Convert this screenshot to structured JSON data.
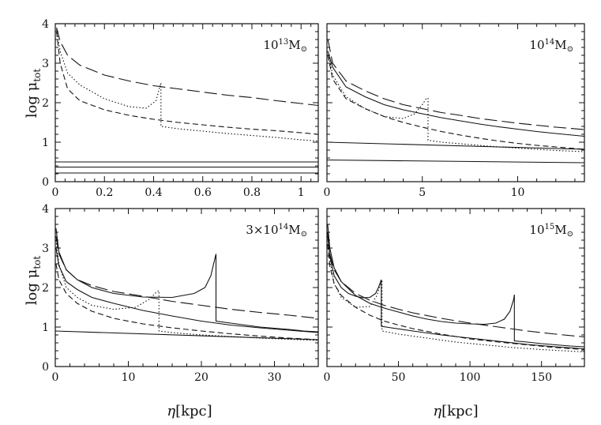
{
  "figure": {
    "ylabel_main": "log μ",
    "ylabel_sub": "tot",
    "xlabel_main": "η",
    "xlabel_unit": "[kpc]"
  },
  "chart_data": [
    {
      "type": "line",
      "label_base": "10",
      "label_exp": "13",
      "label_unit": "M",
      "label_sym": "⊙",
      "xlim": [
        0,
        1.07
      ],
      "ylim": [
        0,
        4
      ],
      "xticks": [
        0,
        0.2,
        0.4,
        0.6,
        0.8,
        1
      ],
      "xtick_labels": [
        "0",
        "0.2",
        "0.4",
        "0.6",
        "0.8",
        "1"
      ],
      "yticks": [
        0,
        1,
        2,
        3,
        4
      ],
      "ytick_labels": [
        "0",
        "1",
        "2",
        "3",
        "4"
      ],
      "series": [
        {
          "name": "long-dash",
          "style": "longdash",
          "x": [
            0.005,
            0.02,
            0.05,
            0.1,
            0.2,
            0.3,
            0.4,
            0.5,
            0.6,
            0.7,
            0.8,
            0.9,
            1.0,
            1.07
          ],
          "y": [
            3.9,
            3.55,
            3.2,
            2.95,
            2.7,
            2.55,
            2.43,
            2.35,
            2.27,
            2.19,
            2.13,
            2.05,
            1.98,
            1.93
          ]
        },
        {
          "name": "short-dash",
          "style": "dash",
          "x": [
            0.005,
            0.02,
            0.05,
            0.1,
            0.2,
            0.3,
            0.4,
            0.5,
            0.6,
            0.7,
            0.8,
            0.9,
            1.0,
            1.07
          ],
          "y": [
            3.8,
            3.0,
            2.35,
            2.05,
            1.82,
            1.68,
            1.58,
            1.5,
            1.44,
            1.38,
            1.33,
            1.29,
            1.24,
            1.2
          ]
        },
        {
          "name": "dotted",
          "style": "dot",
          "x": [
            0.005,
            0.02,
            0.05,
            0.1,
            0.2,
            0.3,
            0.37,
            0.41,
            0.425,
            0.43,
            0.43,
            0.5,
            0.6,
            0.7,
            0.8,
            0.9,
            1.0,
            1.07
          ],
          "y": [
            3.85,
            3.3,
            2.75,
            2.45,
            2.1,
            1.9,
            1.86,
            2.05,
            2.4,
            2.5,
            1.4,
            1.34,
            1.28,
            1.22,
            1.17,
            1.12,
            1.06,
            1.03
          ]
        },
        {
          "name": "solid-0.50",
          "style": "solid",
          "x": [
            0,
            1.07
          ],
          "y": [
            0.5,
            0.5
          ]
        },
        {
          "name": "solid-0.37",
          "style": "solid",
          "x": [
            0,
            1.07
          ],
          "y": [
            0.37,
            0.37
          ]
        },
        {
          "name": "solid-0.22",
          "style": "solid",
          "x": [
            0,
            1.07
          ],
          "y": [
            0.22,
            0.22
          ]
        }
      ]
    },
    {
      "type": "line",
      "label_base": "10",
      "label_exp": "14",
      "label_unit": "M",
      "label_sym": "⊙",
      "xlim": [
        0,
        13.5
      ],
      "ylim": [
        0,
        4
      ],
      "xticks": [
        0,
        5,
        10
      ],
      "xtick_labels": [
        "0",
        "5",
        "10"
      ],
      "yticks": [
        0,
        1,
        2,
        3,
        4
      ],
      "ytick_labels": [],
      "series": [
        {
          "name": "long-dash",
          "style": "longdash",
          "x": [
            0.05,
            0.3,
            1,
            2,
            3,
            4,
            5,
            6,
            7,
            8,
            9,
            10,
            11,
            12,
            13.5
          ],
          "y": [
            3.6,
            3.0,
            2.55,
            2.3,
            2.1,
            1.95,
            1.85,
            1.75,
            1.68,
            1.6,
            1.54,
            1.48,
            1.43,
            1.38,
            1.32
          ]
        },
        {
          "name": "solid-top",
          "style": "solid",
          "x": [
            0.05,
            0.3,
            1,
            2,
            3,
            4,
            5,
            6,
            7,
            8,
            9,
            10,
            11,
            12,
            13.5
          ],
          "y": [
            3.3,
            2.9,
            2.4,
            2.15,
            1.95,
            1.82,
            1.72,
            1.62,
            1.54,
            1.46,
            1.39,
            1.33,
            1.27,
            1.22,
            1.15
          ]
        },
        {
          "name": "short-dash",
          "style": "dash",
          "x": [
            0.05,
            0.3,
            1,
            2,
            3,
            4,
            5,
            6,
            7,
            8,
            9,
            10,
            11,
            12,
            13.5
          ],
          "y": [
            3.2,
            2.6,
            2.1,
            1.85,
            1.65,
            1.5,
            1.38,
            1.27,
            1.18,
            1.1,
            1.03,
            0.97,
            0.92,
            0.88,
            0.82
          ]
        },
        {
          "name": "dotted",
          "style": "dot",
          "x": [
            0.05,
            0.3,
            1,
            2,
            3,
            4,
            4.6,
            5.0,
            5.2,
            5.3,
            5.3,
            6,
            7,
            8,
            9,
            10,
            11,
            12,
            13.5
          ],
          "y": [
            3.3,
            2.7,
            2.15,
            1.85,
            1.65,
            1.6,
            1.72,
            1.95,
            2.1,
            2.12,
            1.05,
            1.0,
            0.96,
            0.92,
            0.88,
            0.85,
            0.82,
            0.79,
            0.76
          ]
        },
        {
          "name": "solid-flat-upper",
          "style": "solid",
          "x": [
            0,
            13.5
          ],
          "y": [
            1.0,
            0.82
          ]
        },
        {
          "name": "solid-flat-lower",
          "style": "solid",
          "x": [
            0,
            13.5
          ],
          "y": [
            0.55,
            0.48
          ]
        }
      ]
    },
    {
      "type": "line",
      "label_base": "3×10",
      "label_exp": "14",
      "label_unit": "M",
      "label_sym": "⊙",
      "xlim": [
        0,
        36
      ],
      "ylim": [
        0,
        4
      ],
      "xticks": [
        0,
        10,
        20,
        30
      ],
      "xtick_labels": [
        "0",
        "10",
        "20",
        "30"
      ],
      "yticks": [
        0,
        1,
        2,
        3,
        4
      ],
      "ytick_labels": [
        "0",
        "1",
        "2",
        "3",
        "4"
      ],
      "series": [
        {
          "name": "solid-spike",
          "style": "solid",
          "x": [
            0.1,
            0.5,
            1.5,
            3,
            5,
            8,
            12,
            16,
            19,
            20.5,
            21.3,
            21.8,
            22.0,
            22.0,
            24,
            26,
            28,
            30,
            32,
            34,
            36
          ],
          "y": [
            3.5,
            2.9,
            2.45,
            2.2,
            2.0,
            1.85,
            1.76,
            1.75,
            1.85,
            2.0,
            2.3,
            2.7,
            2.85,
            1.15,
            1.1,
            1.05,
            1.0,
            0.97,
            0.94,
            0.9,
            0.88
          ]
        },
        {
          "name": "long-dash",
          "style": "longdash",
          "x": [
            0.1,
            0.5,
            1.5,
            3,
            5,
            8,
            12,
            16,
            20,
            24,
            28,
            32,
            36
          ],
          "y": [
            3.3,
            2.85,
            2.45,
            2.2,
            2.05,
            1.9,
            1.78,
            1.65,
            1.55,
            1.45,
            1.37,
            1.3,
            1.22
          ]
        },
        {
          "name": "solid-mid",
          "style": "solid",
          "x": [
            0.1,
            0.5,
            1.5,
            3,
            5,
            8,
            12,
            16,
            20,
            24,
            28,
            32,
            36
          ],
          "y": [
            3.0,
            2.55,
            2.15,
            1.95,
            1.75,
            1.6,
            1.42,
            1.28,
            1.15,
            1.05,
            0.98,
            0.92,
            0.86
          ]
        },
        {
          "name": "dotted",
          "style": "dot",
          "x": [
            0.1,
            0.5,
            1.5,
            3,
            5,
            8,
            11,
            13,
            13.8,
            14.2,
            14.2,
            16,
            20,
            24,
            28,
            32,
            36
          ],
          "y": [
            3.2,
            2.6,
            2.0,
            1.75,
            1.55,
            1.45,
            1.5,
            1.72,
            1.88,
            1.92,
            0.9,
            0.86,
            0.8,
            0.76,
            0.72,
            0.69,
            0.66
          ]
        },
        {
          "name": "short-dash",
          "style": "dash",
          "x": [
            0.1,
            0.5,
            1.5,
            3,
            5,
            8,
            12,
            16,
            20,
            24,
            28,
            32,
            36
          ],
          "y": [
            2.6,
            2.2,
            1.85,
            1.6,
            1.4,
            1.22,
            1.08,
            0.98,
            0.9,
            0.83,
            0.77,
            0.72,
            0.68
          ]
        },
        {
          "name": "solid-flat",
          "style": "solid",
          "x": [
            0,
            36
          ],
          "y": [
            0.9,
            0.68
          ]
        }
      ]
    },
    {
      "type": "line",
      "label_base": "10",
      "label_exp": "15",
      "label_unit": "M",
      "label_sym": "⊙",
      "xlim": [
        0,
        180
      ],
      "ylim": [
        0,
        4
      ],
      "xticks": [
        0,
        50,
        100,
        150
      ],
      "xtick_labels": [
        "0",
        "50",
        "100",
        "150"
      ],
      "yticks": [
        0,
        1,
        2,
        3,
        4
      ],
      "ytick_labels": [],
      "series": [
        {
          "name": "solid-spike-far",
          "style": "solid",
          "x": [
            0.5,
            2,
            5,
            10,
            20,
            30,
            40,
            50,
            60,
            70,
            80,
            90,
            100,
            110,
            118,
            124,
            128,
            130.5,
            131,
            131,
            140,
            150,
            160,
            170,
            180
          ],
          "y": [
            3.6,
            3.0,
            2.5,
            2.15,
            1.8,
            1.6,
            1.48,
            1.38,
            1.28,
            1.2,
            1.14,
            1.1,
            1.08,
            1.07,
            1.1,
            1.2,
            1.4,
            1.7,
            1.82,
            0.65,
            0.62,
            0.58,
            0.55,
            0.52,
            0.5
          ]
        },
        {
          "name": "solid-spike-near",
          "style": "solid",
          "x": [
            0.5,
            2,
            5,
            10,
            15,
            20,
            25,
            30,
            34,
            36,
            37.5,
            38,
            38,
            45,
            60,
            80,
            100,
            120,
            140,
            160,
            180
          ],
          "y": [
            3.4,
            2.8,
            2.3,
            2.0,
            1.85,
            1.78,
            1.74,
            1.75,
            1.85,
            2.0,
            2.15,
            2.2,
            1.02,
            0.98,
            0.9,
            0.8,
            0.72,
            0.64,
            0.56,
            0.5,
            0.45
          ]
        },
        {
          "name": "long-dash",
          "style": "longdash",
          "x": [
            0.5,
            2,
            5,
            10,
            20,
            30,
            40,
            50,
            60,
            80,
            100,
            120,
            140,
            160,
            180
          ],
          "y": [
            3.3,
            2.85,
            2.45,
            2.15,
            1.85,
            1.68,
            1.55,
            1.45,
            1.36,
            1.22,
            1.1,
            1.0,
            0.9,
            0.82,
            0.75
          ]
        },
        {
          "name": "dotted",
          "style": "dot",
          "x": [
            0.5,
            2,
            5,
            10,
            20,
            30,
            35,
            37.5,
            38.5,
            38.5,
            50,
            70,
            90,
            110,
            130,
            150,
            180
          ],
          "y": [
            3.4,
            2.7,
            2.1,
            1.75,
            1.5,
            1.52,
            1.8,
            2.1,
            2.15,
            0.9,
            0.82,
            0.72,
            0.62,
            0.55,
            0.48,
            0.43,
            0.37
          ]
        },
        {
          "name": "short-dash",
          "style": "dash",
          "x": [
            0.5,
            2,
            5,
            10,
            20,
            30,
            40,
            50,
            60,
            80,
            100,
            120,
            140,
            160,
            180
          ],
          "y": [
            3.1,
            2.55,
            2.1,
            1.8,
            1.5,
            1.3,
            1.15,
            1.05,
            0.96,
            0.82,
            0.7,
            0.62,
            0.55,
            0.48,
            0.43
          ]
        }
      ]
    }
  ]
}
